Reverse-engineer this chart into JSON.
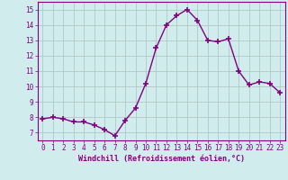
{
  "x": [
    0,
    1,
    2,
    3,
    4,
    5,
    6,
    7,
    8,
    9,
    10,
    11,
    12,
    13,
    14,
    15,
    16,
    17,
    18,
    19,
    20,
    21,
    22,
    23
  ],
  "y": [
    7.9,
    8.0,
    7.9,
    7.7,
    7.7,
    7.5,
    7.2,
    6.8,
    7.8,
    8.6,
    10.2,
    12.5,
    14.0,
    14.6,
    15.0,
    14.3,
    13.0,
    12.9,
    13.1,
    11.0,
    10.1,
    10.3,
    10.2,
    9.6
  ],
  "line_color": "#800080",
  "marker": "+",
  "markersize": 4.0,
  "linewidth": 1.0,
  "bg_color": "#d0ecec",
  "grid_color": "#b0c8c8",
  "xlabel": "Windchill (Refroidissement éolien,°C)",
  "xlabel_color": "#800080",
  "tick_color": "#800080",
  "label_color": "#800080",
  "ylim": [
    6.5,
    15.5
  ],
  "yticks": [
    7,
    8,
    9,
    10,
    11,
    12,
    13,
    14,
    15
  ],
  "xlim": [
    -0.5,
    23.5
  ],
  "xticks": [
    0,
    1,
    2,
    3,
    4,
    5,
    6,
    7,
    8,
    9,
    10,
    11,
    12,
    13,
    14,
    15,
    16,
    17,
    18,
    19,
    20,
    21,
    22,
    23
  ],
  "xtick_fontsize": 5.5,
  "ytick_fontsize": 5.5,
  "xlabel_fontsize": 6.0
}
